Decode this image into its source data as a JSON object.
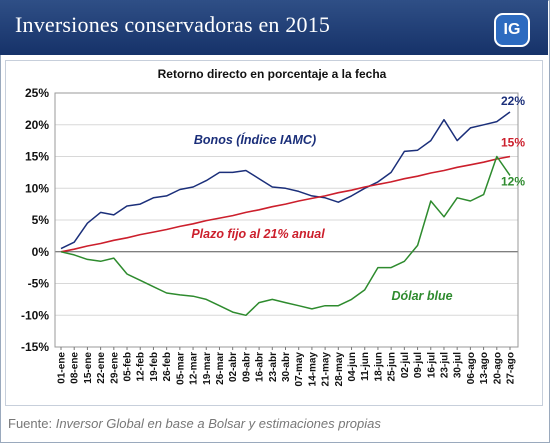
{
  "header": {
    "title": "Inversiones conservadoras en 2015",
    "logo_text": "IG"
  },
  "footer": {
    "source_label": "Fuente:",
    "source_text": "Inversor Global en base a Bolsar y estimaciones propias"
  },
  "colors": {
    "header_bg": "#1f3f78",
    "bonos": "#1b2f7a",
    "plazo": "#cc1f2c",
    "dolar": "#2e8b2e",
    "grid": "#d8d8d8"
  },
  "chart_data": {
    "type": "line",
    "title": "Retorno directo en porcentaje a la fecha",
    "xlabel": "",
    "ylabel": "",
    "ylim": [
      -15,
      25
    ],
    "ytick_labels": [
      "25%",
      "20%",
      "15%",
      "10%",
      "5%",
      "0%",
      "-5%",
      "-10%",
      "-15%"
    ],
    "grid": "horizontal",
    "x": [
      "01-ene",
      "08-ene",
      "15-ene",
      "22-ene",
      "29-ene",
      "05-feb",
      "12-feb",
      "19-feb",
      "26-feb",
      "05-mar",
      "12-mar",
      "19-mar",
      "26-mar",
      "02-abr",
      "09-abr",
      "16-abr",
      "23-abr",
      "30-abr",
      "07-may",
      "14-may",
      "21-may",
      "28-may",
      "04-jun",
      "11-jun",
      "18-jun",
      "25-jun",
      "02-jul",
      "09-jul",
      "16-jul",
      "23-jul",
      "30-jul",
      "06-ago",
      "13-ago",
      "20-ago",
      "27-ago"
    ],
    "series": [
      {
        "name": "Bonos (Índice IAMC)",
        "color": "#1b2f7a",
        "end_label": "22%",
        "values": [
          0.5,
          1.5,
          4.5,
          6.2,
          5.8,
          7.2,
          7.5,
          8.5,
          8.8,
          9.8,
          10.2,
          11.2,
          12.5,
          12.5,
          12.8,
          11.5,
          10.2,
          10.0,
          9.5,
          8.8,
          8.5,
          7.8,
          8.8,
          10.0,
          11.0,
          12.5,
          15.8,
          16.0,
          17.5,
          20.8,
          17.5,
          19.5,
          20.0,
          20.5,
          22.0
        ]
      },
      {
        "name": "Plazo fijo al 21% anual",
        "color": "#cc1f2c",
        "end_label": "15%",
        "values": [
          0.0,
          0.4,
          0.9,
          1.3,
          1.8,
          2.2,
          2.7,
          3.1,
          3.5,
          4.0,
          4.4,
          4.9,
          5.3,
          5.7,
          6.2,
          6.6,
          7.1,
          7.5,
          8.0,
          8.4,
          8.8,
          9.3,
          9.7,
          10.2,
          10.6,
          11.0,
          11.5,
          11.9,
          12.4,
          12.8,
          13.3,
          13.7,
          14.1,
          14.6,
          15.0
        ]
      },
      {
        "name": "Dólar blue",
        "color": "#2e8b2e",
        "end_label": "12%",
        "values": [
          0.0,
          -0.5,
          -1.2,
          -1.5,
          -1.0,
          -3.5,
          -4.5,
          -5.5,
          -6.5,
          -6.8,
          -7.0,
          -7.5,
          -8.5,
          -9.5,
          -10.0,
          -8.0,
          -7.5,
          -8.0,
          -8.5,
          -9.0,
          -8.5,
          -8.5,
          -7.5,
          -6.0,
          -2.5,
          -2.5,
          -1.5,
          1.0,
          8.0,
          5.5,
          8.5,
          8.0,
          9.0,
          15.0,
          12.0
        ]
      }
    ]
  }
}
